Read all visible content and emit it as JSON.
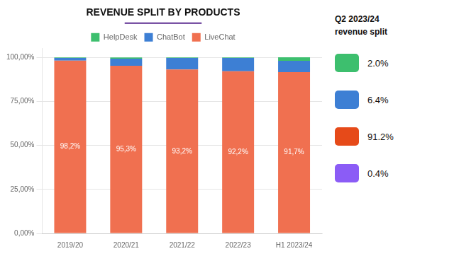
{
  "chart_data": {
    "type": "bar",
    "title": "REVENUE SPLIT BY PRODUCTS",
    "categories": [
      "2019/20",
      "2020/21",
      "2021/22",
      "2022/23",
      "H1 2023/24"
    ],
    "stacked": true,
    "series": [
      {
        "name": "LiveChat",
        "color": "#F07050",
        "values": [
          98.2,
          95.3,
          93.2,
          92.2,
          91.7
        ],
        "value_labels": [
          "98,2%",
          "95,3%",
          "93,2%",
          "92,2%",
          "91,7%"
        ],
        "data_labels": true
      },
      {
        "name": "ChatBot",
        "color": "#3D7FD4",
        "values": [
          1.5,
          4.0,
          6.5,
          7.5,
          6.4
        ]
      },
      {
        "name": "HelpDesk",
        "color": "#3DBF6E",
        "values": [
          0.3,
          0.7,
          0.3,
          0.3,
          2.0
        ]
      }
    ],
    "ylim": [
      0,
      105
    ],
    "yticks": [
      {
        "value": 0,
        "label": "0,00%"
      },
      {
        "value": 25,
        "label": "25,00%"
      },
      {
        "value": 50,
        "label": "50,00%"
      },
      {
        "value": 75,
        "label": "75,00%"
      },
      {
        "value": 100,
        "label": "100,00%"
      }
    ],
    "grid": true,
    "legend": "top",
    "annotations": [
      {
        "text": "Q2 2023/24\nrevenue split"
      },
      {
        "text": "2.0%",
        "color": "#3DBF6E"
      },
      {
        "text": "6.4%",
        "color": "#3D7FD4"
      },
      {
        "text": "91.2%",
        "color": "#E64A19"
      },
      {
        "text": "0.4%",
        "color": "#8B5CF6"
      }
    ]
  }
}
